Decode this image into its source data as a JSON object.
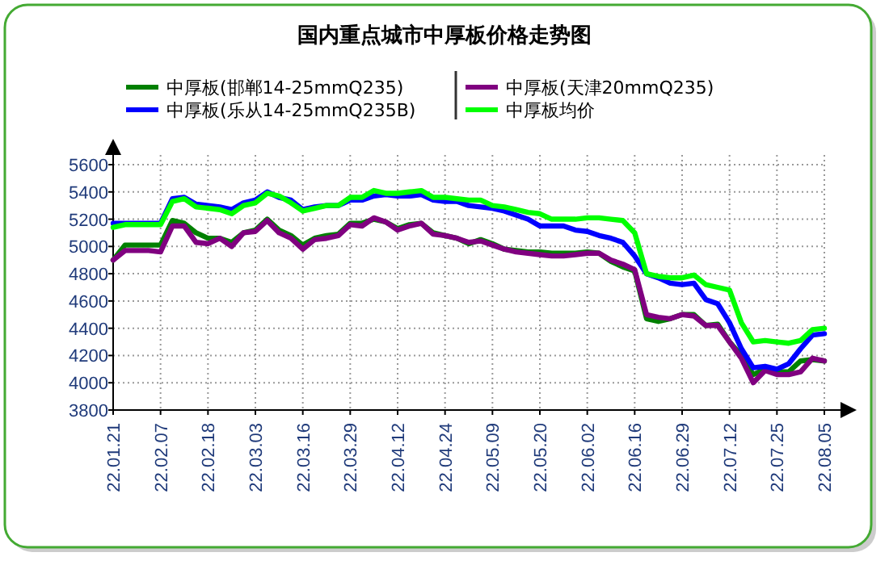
{
  "chart_data": {
    "type": "line",
    "title": "国内重点城市中厚板价格走势图",
    "categories": [
      "22.01.21",
      null,
      null,
      null,
      "22.02.07",
      null,
      null,
      null,
      "22.02.18",
      null,
      null,
      null,
      "22.03.03",
      null,
      null,
      null,
      "22.03.16",
      null,
      null,
      null,
      "22.03.29",
      null,
      null,
      null,
      "22.04.12",
      null,
      null,
      null,
      "22.04.24",
      null,
      null,
      null,
      "22.05.09",
      null,
      null,
      null,
      "22.05.20",
      null,
      null,
      null,
      "22.06.02",
      null,
      null,
      null,
      "22.06.16",
      null,
      null,
      null,
      "22.06.29",
      null,
      null,
      null,
      "22.07.12",
      null,
      null,
      null,
      "22.07.25",
      null,
      null,
      null,
      "22.08.05"
    ],
    "series": [
      {
        "name": "中厚板(邯郸14-25mmQ235)",
        "color": "#008000",
        "values": [
          4900,
          5010,
          5010,
          5010,
          5010,
          5190,
          5170,
          5100,
          5060,
          5060,
          5030,
          5100,
          5120,
          5200,
          5120,
          5080,
          5010,
          5060,
          5080,
          5090,
          5170,
          5170,
          5200,
          5180,
          5130,
          5160,
          5170,
          5100,
          5080,
          5060,
          5020,
          5050,
          5020,
          4980,
          4970,
          4960,
          4960,
          4950,
          4950,
          4950,
          4960,
          4950,
          4890,
          4850,
          4820,
          4470,
          4450,
          4470,
          4500,
          4500,
          4420,
          4430,
          4300,
          4200,
          4060,
          4100,
          4080,
          4080,
          4160,
          4170,
          4160
        ]
      },
      {
        "name": "中厚板(天津20mmQ235)",
        "color": "#800080",
        "values": [
          4900,
          4970,
          4970,
          4970,
          4960,
          5150,
          5150,
          5030,
          5020,
          5060,
          5000,
          5100,
          5110,
          5190,
          5100,
          5060,
          4980,
          5050,
          5060,
          5080,
          5160,
          5150,
          5210,
          5180,
          5120,
          5150,
          5170,
          5090,
          5080,
          5060,
          5030,
          5040,
          5010,
          4980,
          4960,
          4950,
          4940,
          4930,
          4930,
          4940,
          4950,
          4950,
          4900,
          4870,
          4830,
          4500,
          4480,
          4470,
          4500,
          4490,
          4420,
          4420,
          4300,
          4180,
          4000,
          4090,
          4060,
          4060,
          4080,
          4180,
          4160
        ]
      },
      {
        "name": "中厚板(乐从14-25mmQ235B)",
        "color": "#0000ff",
        "values": [
          5170,
          5170,
          5170,
          5170,
          5170,
          5350,
          5360,
          5310,
          5300,
          5290,
          5270,
          5320,
          5340,
          5400,
          5360,
          5340,
          5270,
          5290,
          5300,
          5300,
          5340,
          5340,
          5370,
          5380,
          5370,
          5370,
          5380,
          5340,
          5330,
          5330,
          5300,
          5290,
          5280,
          5260,
          5230,
          5200,
          5150,
          5150,
          5150,
          5120,
          5110,
          5080,
          5060,
          5030,
          4930,
          4800,
          4770,
          4730,
          4720,
          4730,
          4610,
          4580,
          4440,
          4250,
          4110,
          4120,
          4100,
          4140,
          4250,
          4350,
          4360
        ]
      },
      {
        "name": "中厚板均价",
        "color": "#00ff00",
        "values": [
          5140,
          5160,
          5160,
          5160,
          5160,
          5330,
          5350,
          5290,
          5280,
          5270,
          5240,
          5300,
          5320,
          5390,
          5370,
          5320,
          5260,
          5280,
          5300,
          5300,
          5360,
          5360,
          5410,
          5390,
          5390,
          5400,
          5410,
          5360,
          5360,
          5350,
          5340,
          5340,
          5300,
          5290,
          5270,
          5250,
          5240,
          5200,
          5200,
          5200,
          5210,
          5210,
          5200,
          5190,
          5100,
          4800,
          4780,
          4770,
          4770,
          4790,
          4720,
          4700,
          4680,
          4440,
          4300,
          4310,
          4300,
          4290,
          4310,
          4390,
          4400
        ]
      }
    ],
    "ylim": [
      3800,
      5600
    ],
    "yticks": [
      3800,
      4000,
      4200,
      4400,
      4600,
      4800,
      5000,
      5200,
      5400,
      5600
    ],
    "grid": true,
    "legend": "top"
  }
}
